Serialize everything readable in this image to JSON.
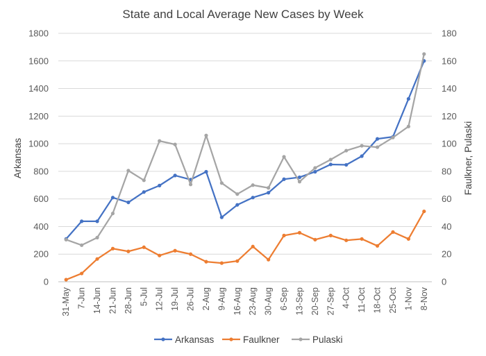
{
  "chart_data": {
    "type": "line",
    "title": "State and Local Average New Cases by Week",
    "ylabel": "Arkansas",
    "y2label": "Faulkner, Pulaski",
    "xlabel": "",
    "ylim": [
      0,
      1800
    ],
    "y2lim": [
      0,
      180
    ],
    "yticks": [
      "0",
      "200",
      "400",
      "600",
      "800",
      "1000",
      "1200",
      "1400",
      "1600",
      "1800"
    ],
    "y2ticks": [
      "0",
      "20",
      "40",
      "60",
      "80",
      "100",
      "120",
      "140",
      "160",
      "180"
    ],
    "grid": true,
    "legend_position": "bottom",
    "categories": [
      "31-May",
      "7-Jun",
      "14-Jun",
      "21-Jun",
      "28-Jun",
      "5-Jul",
      "12-Jul",
      "19-Jul",
      "26-Jul",
      "2-Aug",
      "9-Aug",
      "16-Aug",
      "23-Aug",
      "30-Aug",
      "6-Sep",
      "13-Sep",
      "20-Sep",
      "27-Sep",
      "4-Oct",
      "11-Oct",
      "18-Oct",
      "25-Oct",
      "1-Nov",
      "8-Nov"
    ],
    "series": [
      {
        "name": "Arkansas",
        "axis": "left",
        "color": "#4472C4",
        "values": [
          310,
          438,
          438,
          610,
          575,
          650,
          697,
          770,
          740,
          797,
          467,
          557,
          610,
          645,
          743,
          757,
          797,
          850,
          847,
          910,
          1035,
          1050,
          1325,
          1600
        ]
      },
      {
        "name": "Faulkner",
        "axis": "right",
        "color": "#ED7D31",
        "values": [
          1.5,
          6,
          16.5,
          24,
          22,
          25,
          19,
          22.5,
          20,
          14.5,
          13.5,
          15,
          25.5,
          16,
          33.5,
          35.5,
          30.5,
          33.5,
          30,
          31,
          26,
          36,
          31,
          51
        ]
      },
      {
        "name": "Pulaski",
        "axis": "right",
        "color": "#A5A5A5",
        "values": [
          30.5,
          26.5,
          32,
          49.5,
          80.5,
          73.5,
          102,
          99.5,
          70.5,
          106,
          71.5,
          63.5,
          70,
          68,
          90.5,
          72.5,
          82.5,
          88.5,
          95,
          98.5,
          97.5,
          104.5,
          112.5,
          165
        ]
      }
    ]
  }
}
